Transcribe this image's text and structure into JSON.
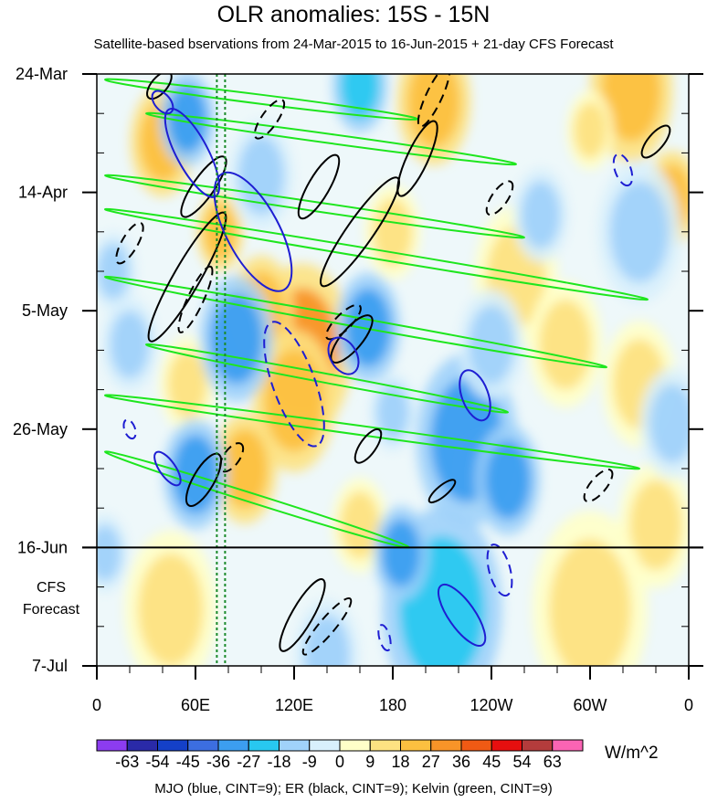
{
  "chart_data": {
    "type": "heatmap",
    "title": "OLR anomalies: 15S - 15N",
    "subtitle": "Satellite-based bservations from 24-Mar-2015 to 16-Jun-2015 + 21-day CFS Forecast",
    "x_ticks": [
      "0",
      "60E",
      "120E",
      "180",
      "120W",
      "60W",
      "0"
    ],
    "x_lon": [
      0,
      60,
      120,
      180,
      240,
      300,
      360
    ],
    "y_ticks": [
      "24-Mar",
      "14-Apr",
      "5-May",
      "26-May",
      "16-Jun",
      "7-Jul"
    ],
    "y_day": [
      0,
      21,
      42,
      63,
      84,
      105
    ],
    "y_range": [
      0,
      105
    ],
    "x_range": [
      0,
      360
    ],
    "observation_end_day": 84,
    "forecast_label": [
      "CFS",
      "Forecast"
    ],
    "reference_lines_lon": [
      73,
      78
    ],
    "colorbar": {
      "levels": [
        "-63",
        "-54",
        "-45",
        "-36",
        "-27",
        "-18",
        "-9",
        "0",
        "9",
        "18",
        "27",
        "36",
        "45",
        "54",
        "63"
      ],
      "colors": [
        "#8c3cf0",
        "#2a2aa8",
        "#1440c8",
        "#3c6ee0",
        "#3c9ef0",
        "#28c8f0",
        "#a0d2fa",
        "#d8f0fc",
        "#ffffc8",
        "#fde282",
        "#fcc040",
        "#f89428",
        "#f05a14",
        "#e60f0f",
        "#b43c3c",
        "#fa64b4"
      ],
      "units": "W/m^2"
    },
    "contour_legend": "MJO (blue, CINT=9); ER (black, CINT=9); Kelvin (green, CINT=9)",
    "contour_colors": {
      "mjo": "#1e1ed2",
      "er": "#000000",
      "kelvin": "#1ee61e"
    },
    "kelvin_waves": [
      {
        "lon0": 5,
        "day0": 1,
        "lon1": 195,
        "day1": 8
      },
      {
        "lon0": 30,
        "day0": 7,
        "lon1": 255,
        "day1": 16
      },
      {
        "lon0": 5,
        "day0": 18,
        "lon1": 260,
        "day1": 29
      },
      {
        "lon0": 5,
        "day0": 24,
        "lon1": 335,
        "day1": 40
      },
      {
        "lon0": 5,
        "day0": 36,
        "lon1": 310,
        "day1": 52
      },
      {
        "lon0": 30,
        "day0": 48,
        "lon1": 250,
        "day1": 60
      },
      {
        "lon0": 5,
        "day0": 57,
        "lon1": 330,
        "day1": 70
      },
      {
        "lon0": 5,
        "day0": 67,
        "lon1": 190,
        "day1": 84
      }
    ],
    "mjo_contours": [
      {
        "lon": 40,
        "day": 5,
        "rx": 8,
        "ry": 3,
        "angle": 50,
        "dashed": false
      },
      {
        "lon": 58,
        "day": 14,
        "rx": 30,
        "ry": 6,
        "angle": 62,
        "dashed": false
      },
      {
        "lon": 95,
        "day": 28,
        "rx": 40,
        "ry": 10,
        "angle": 62,
        "dashed": false
      },
      {
        "lon": 150,
        "day": 50,
        "rx": 12,
        "ry": 5,
        "angle": 60,
        "dashed": false
      },
      {
        "lon": 230,
        "day": 57,
        "rx": 16,
        "ry": 5,
        "angle": 70,
        "dashed": false
      },
      {
        "lon": 43,
        "day": 70,
        "rx": 12,
        "ry": 3,
        "angle": 55,
        "dashed": false
      },
      {
        "lon": 222,
        "day": 96,
        "rx": 22,
        "ry": 5,
        "angle": 55,
        "dashed": false
      },
      {
        "lon": 120,
        "day": 55,
        "rx": 40,
        "ry": 8,
        "angle": 70,
        "dashed": true
      },
      {
        "lon": 245,
        "day": 88,
        "rx": 16,
        "ry": 4,
        "angle": 75,
        "dashed": true
      },
      {
        "lon": 175,
        "day": 100,
        "rx": 8,
        "ry": 2,
        "angle": 75,
        "dashed": true
      },
      {
        "lon": 320,
        "day": 17,
        "rx": 10,
        "ry": 3,
        "angle": 70,
        "dashed": true
      },
      {
        "lon": 20,
        "day": 63,
        "rx": 6,
        "ry": 2,
        "angle": 70,
        "dashed": true
      }
    ],
    "er_contours": [
      {
        "lon": 55,
        "day": 36,
        "rx": 45,
        "ry": 5,
        "angle": -60,
        "dashed": false
      },
      {
        "lon": 160,
        "day": 28,
        "rx": 40,
        "ry": 5,
        "angle": -55,
        "dashed": false
      },
      {
        "lon": 195,
        "day": 15,
        "rx": 25,
        "ry": 4,
        "angle": -65,
        "dashed": false
      },
      {
        "lon": 135,
        "day": 20,
        "rx": 22,
        "ry": 4,
        "angle": -60,
        "dashed": false
      },
      {
        "lon": 65,
        "day": 72,
        "rx": 18,
        "ry": 4,
        "angle": -60,
        "dashed": false
      },
      {
        "lon": 165,
        "day": 66,
        "rx": 12,
        "ry": 3,
        "angle": -55,
        "dashed": false
      },
      {
        "lon": 210,
        "day": 74,
        "rx": 10,
        "ry": 2,
        "angle": -40,
        "dashed": false
      },
      {
        "lon": 125,
        "day": 96,
        "rx": 25,
        "ry": 4,
        "angle": -60,
        "dashed": false
      },
      {
        "lon": 340,
        "day": 12,
        "rx": 12,
        "ry": 3,
        "angle": -50,
        "dashed": false
      },
      {
        "lon": 155,
        "day": 47,
        "rx": 18,
        "ry": 4,
        "angle": -50,
        "dashed": false
      },
      {
        "lon": 65,
        "day": 20,
        "rx": 22,
        "ry": 4,
        "angle": -55,
        "dashed": false
      },
      {
        "lon": 38,
        "day": 2,
        "rx": 10,
        "ry": 3,
        "angle": -50,
        "dashed": false
      },
      {
        "lon": 105,
        "day": 8,
        "rx": 14,
        "ry": 3,
        "angle": -55,
        "dashed": true
      },
      {
        "lon": 60,
        "day": 40,
        "rx": 22,
        "ry": 3,
        "angle": -65,
        "dashed": true
      },
      {
        "lon": 205,
        "day": 4,
        "rx": 20,
        "ry": 3,
        "angle": -65,
        "dashed": true
      },
      {
        "lon": 245,
        "day": 22,
        "rx": 12,
        "ry": 3,
        "angle": -55,
        "dashed": true
      },
      {
        "lon": 305,
        "day": 73,
        "rx": 12,
        "ry": 3,
        "angle": -50,
        "dashed": true
      },
      {
        "lon": 140,
        "day": 98,
        "rx": 22,
        "ry": 3,
        "angle": -50,
        "dashed": true
      },
      {
        "lon": 150,
        "day": 44,
        "rx": 14,
        "ry": 3,
        "angle": -45,
        "dashed": true
      },
      {
        "lon": 82,
        "day": 68,
        "rx": 10,
        "ry": 3,
        "angle": -55,
        "dashed": true
      },
      {
        "lon": 20,
        "day": 30,
        "rx": 14,
        "ry": 3,
        "angle": -60,
        "dashed": true
      }
    ],
    "anomaly_blobs": [
      {
        "lon": 40,
        "day": 12,
        "r": 14,
        "value": 18
      },
      {
        "lon": 125,
        "day": 49,
        "r": 22,
        "value": 30
      },
      {
        "lon": 100,
        "day": 42,
        "r": 14,
        "value": 22
      },
      {
        "lon": 120,
        "day": 58,
        "r": 18,
        "value": 20
      },
      {
        "lon": 55,
        "day": 55,
        "r": 12,
        "value": 15
      },
      {
        "lon": 205,
        "day": 5,
        "r": 16,
        "value": 24
      },
      {
        "lon": 180,
        "day": 28,
        "r": 12,
        "value": 15
      },
      {
        "lon": 325,
        "day": 3,
        "r": 18,
        "value": 18
      },
      {
        "lon": 350,
        "day": 22,
        "r": 12,
        "value": 20
      },
      {
        "lon": 255,
        "day": 36,
        "r": 18,
        "value": 16
      },
      {
        "lon": 285,
        "day": 48,
        "r": 16,
        "value": 14
      },
      {
        "lon": 330,
        "day": 55,
        "r": 16,
        "value": 12
      },
      {
        "lon": 90,
        "day": 70,
        "r": 14,
        "value": 18
      },
      {
        "lon": 340,
        "day": 80,
        "r": 16,
        "value": 12
      },
      {
        "lon": 45,
        "day": 95,
        "r": 20,
        "value": 14
      },
      {
        "lon": 300,
        "day": 95,
        "r": 25,
        "value": 10
      },
      {
        "lon": 160,
        "day": 80,
        "r": 12,
        "value": 16
      },
      {
        "lon": 75,
        "day": 28,
        "r": 10,
        "value": 18
      },
      {
        "lon": 300,
        "day": 10,
        "r": 10,
        "value": 14
      },
      {
        "lon": 230,
        "day": 70,
        "r": 10,
        "value": 14
      },
      {
        "lon": 55,
        "day": 8,
        "r": 12,
        "value": -30
      },
      {
        "lon": 85,
        "day": 47,
        "r": 16,
        "value": -28
      },
      {
        "lon": 165,
        "day": 45,
        "r": 14,
        "value": -36
      },
      {
        "lon": 225,
        "day": 65,
        "r": 22,
        "value": -28
      },
      {
        "lon": 250,
        "day": 72,
        "r": 14,
        "value": -34
      },
      {
        "lon": 210,
        "day": 95,
        "r": 26,
        "value": -26
      },
      {
        "lon": 185,
        "day": 85,
        "r": 12,
        "value": -30
      },
      {
        "lon": 60,
        "day": 71,
        "r": 14,
        "value": -34
      },
      {
        "lon": 160,
        "day": 2,
        "r": 12,
        "value": -20
      },
      {
        "lon": 330,
        "day": 28,
        "r": 18,
        "value": -16
      },
      {
        "lon": 270,
        "day": 25,
        "r": 12,
        "value": -14
      },
      {
        "lon": 20,
        "day": 48,
        "r": 12,
        "value": -18
      },
      {
        "lon": 240,
        "day": 48,
        "r": 14,
        "value": -18
      },
      {
        "lon": 10,
        "day": 35,
        "r": 10,
        "value": -15
      },
      {
        "lon": 180,
        "day": 60,
        "r": 10,
        "value": -14
      },
      {
        "lon": 140,
        "day": 103,
        "r": 14,
        "value": -18
      },
      {
        "lon": 100,
        "day": 18,
        "r": 14,
        "value": -16
      },
      {
        "lon": 350,
        "day": 62,
        "r": 14,
        "value": -14
      },
      {
        "lon": 5,
        "day": 85,
        "r": 10,
        "value": -10
      }
    ]
  }
}
